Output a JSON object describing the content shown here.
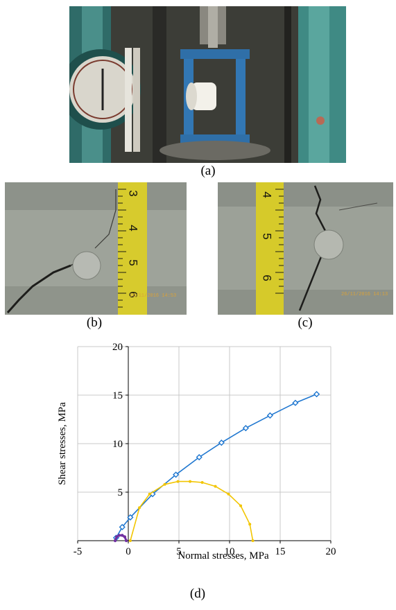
{
  "captions": {
    "a": "(a)",
    "b": "(b)",
    "c": "(c)",
    "d": "(d)"
  },
  "stamps": {
    "b": "26/11/2016 14:53",
    "c": "26/11/2016 14:13"
  },
  "tape_numbers": {
    "b": [
      "3",
      "4",
      "5",
      "6"
    ],
    "c": [
      "4",
      "5",
      "6"
    ]
  },
  "colors": {
    "envelope": "#1f77d0",
    "mohr_circle_large": "#f2c500",
    "mohr_circle_small": "#7030a0"
  },
  "chart_data": {
    "type": "scatter",
    "xlabel": "Normal stresses, MPa",
    "ylabel": "Shear stresses, MPa",
    "xlim": [
      -5,
      20
    ],
    "ylim": [
      0,
      20
    ],
    "x_ticks": [
      "-5",
      "0",
      "5",
      "10",
      "15",
      "20"
    ],
    "y_ticks": [
      "5",
      "10",
      "15",
      "20"
    ],
    "grid": true,
    "series": [
      {
        "marker": "diamond",
        "color": "#1f77d0",
        "x": [
          -1.2,
          -0.6,
          0.2,
          2.4,
          4.7,
          7.0,
          9.2,
          11.6,
          14.0,
          16.5,
          18.6
        ],
        "y": [
          0.3,
          1.4,
          2.4,
          4.8,
          6.8,
          8.6,
          10.1,
          11.6,
          12.9,
          14.2,
          15.1
        ]
      },
      {
        "marker": "circle",
        "color": "#f2c500",
        "x": [
          0.2,
          1.1,
          2.1,
          3.6,
          4.9,
          6.1,
          7.3,
          8.6,
          9.9,
          11.1,
          12.0,
          12.3
        ],
        "y": [
          0.0,
          3.4,
          4.8,
          5.8,
          6.1,
          6.1,
          6.0,
          5.6,
          4.8,
          3.6,
          1.7,
          0.0
        ]
      },
      {
        "marker": "circle",
        "color": "#7030a0",
        "x": [
          -1.3,
          -1.15,
          -0.9,
          -0.6,
          -0.35,
          -0.2
        ],
        "y": [
          0.0,
          0.4,
          0.55,
          0.55,
          0.4,
          0.0
        ]
      }
    ]
  }
}
